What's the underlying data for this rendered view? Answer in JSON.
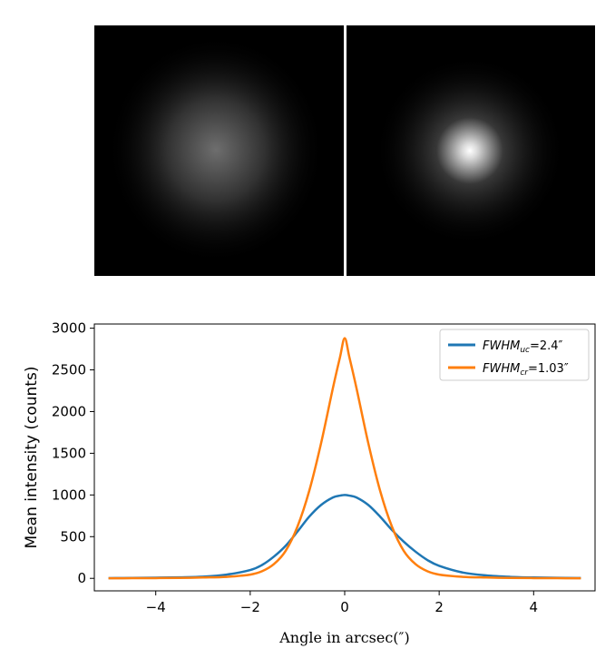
{
  "colors": {
    "uc": "#1f77b4",
    "cr": "#ff7f0e",
    "divider": "#ffffff",
    "image_background": "#000000"
  },
  "images": {
    "left": {
      "blob_peak_brightness": 0.43,
      "blob_spread": "wide"
    },
    "right": {
      "blob_peak_brightness": 1.0,
      "blob_spread": "narrow"
    }
  },
  "legend": {
    "uc": {
      "main": "FWHM",
      "sub": "uc",
      "value": "=2.4″"
    },
    "cr": {
      "main": "FWHM",
      "sub": "cr",
      "value": "=1.03″"
    }
  },
  "chart_data": {
    "type": "line",
    "xlabel": "Angle in arcsec(″)",
    "ylabel": "Mean intensity (counts)",
    "xlim": [
      -5.3,
      5.3
    ],
    "ylim": [
      -150,
      3050
    ],
    "x_ticks": [
      -4,
      -2,
      0,
      2,
      4
    ],
    "x_tick_labels": [
      "−4",
      "−2",
      "0",
      "2",
      "4"
    ],
    "y_ticks": [
      0,
      500,
      1000,
      1500,
      2000,
      2500,
      3000
    ],
    "y_tick_labels": [
      "0",
      "500",
      "1000",
      "1500",
      "2000",
      "2500",
      "3000"
    ],
    "grid": false,
    "legend_position": "top-right",
    "x": [
      -5.0,
      -4.5,
      -4.0,
      -3.5,
      -3.0,
      -2.5,
      -2.0,
      -1.75,
      -1.5,
      -1.25,
      -1.0,
      -0.75,
      -0.5,
      -0.25,
      -0.1,
      0.0,
      0.1,
      0.25,
      0.5,
      0.75,
      1.0,
      1.25,
      1.5,
      1.75,
      2.0,
      2.5,
      3.0,
      3.5,
      4.0,
      4.5,
      5.0
    ],
    "series": [
      {
        "name": "FWHM_uc=2.4″",
        "color": "#1f77b4",
        "values": [
          3,
          5,
          8,
          12,
          20,
          45,
          100,
          160,
          260,
          390,
          560,
          740,
          880,
          970,
          992,
          1000,
          992,
          970,
          880,
          740,
          580,
          440,
          320,
          220,
          150,
          70,
          35,
          18,
          10,
          6,
          4
        ]
      },
      {
        "name": "FWHM_cr=1.03″",
        "color": "#ff7f0e",
        "values": [
          1,
          2,
          3,
          5,
          10,
          18,
          45,
          85,
          170,
          330,
          620,
          1050,
          1620,
          2280,
          2650,
          2880,
          2650,
          2280,
          1620,
          1050,
          620,
          330,
          170,
          85,
          45,
          18,
          10,
          5,
          3,
          2,
          1
        ]
      }
    ]
  }
}
